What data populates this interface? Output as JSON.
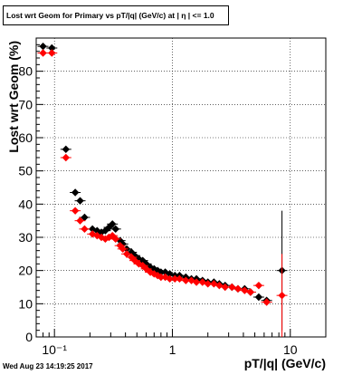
{
  "title": "Lost wrt Geom for Primary vs pT/|q| (GeV/c) at |  η | <= 1.0",
  "timestamp": "Wed Aug 23 14:19:25 2017",
  "chart_data": {
    "type": "scatter",
    "title": "Lost wrt Geom for Primary vs pT/|q| (GeV/c) at |  η | <= 1.0",
    "xlabel": "pT/|q| (GeV/c)",
    "ylabel": "Lost wrt Geom (%)",
    "xscale": "log",
    "xlim": [
      0.07,
      20
    ],
    "ylim": [
      0,
      90
    ],
    "grid": true,
    "x_ticks": [
      {
        "value": 0.1,
        "label": "10⁻¹"
      },
      {
        "value": 1,
        "label": "1"
      },
      {
        "value": 10,
        "label": "10"
      }
    ],
    "y_ticks": [
      0,
      10,
      20,
      30,
      40,
      50,
      60,
      70,
      80
    ],
    "colors": {
      "series1": "#000000",
      "series2": "#ff0000",
      "grid": "#000000"
    },
    "series": [
      {
        "color": "#000000",
        "marker": "diamond",
        "points": [
          {
            "x": 0.08,
            "y": 87.5
          },
          {
            "x": 0.095,
            "y": 87
          },
          {
            "x": 0.125,
            "y": 56.5
          },
          {
            "x": 0.15,
            "y": 43.5
          },
          {
            "x": 0.165,
            "y": 41
          },
          {
            "x": 0.18,
            "y": 36
          },
          {
            "x": 0.21,
            "y": 32.5
          },
          {
            "x": 0.23,
            "y": 32
          },
          {
            "x": 0.25,
            "y": 31.5
          },
          {
            "x": 0.27,
            "y": 32
          },
          {
            "x": 0.29,
            "y": 33
          },
          {
            "x": 0.31,
            "y": 34
          },
          {
            "x": 0.33,
            "y": 32.5
          },
          {
            "x": 0.36,
            "y": 29
          },
          {
            "x": 0.38,
            "y": 28
          },
          {
            "x": 0.41,
            "y": 26.5
          },
          {
            "x": 0.45,
            "y": 25.5
          },
          {
            "x": 0.48,
            "y": 24.5
          },
          {
            "x": 0.52,
            "y": 23.5
          },
          {
            "x": 0.56,
            "y": 23
          },
          {
            "x": 0.6,
            "y": 22
          },
          {
            "x": 0.65,
            "y": 21
          },
          {
            "x": 0.7,
            "y": 20.5
          },
          {
            "x": 0.75,
            "y": 20
          },
          {
            "x": 0.8,
            "y": 19.5
          },
          {
            "x": 0.87,
            "y": 19.5
          },
          {
            "x": 0.95,
            "y": 19
          },
          {
            "x": 1.05,
            "y": 18.5
          },
          {
            "x": 1.15,
            "y": 18.5
          },
          {
            "x": 1.3,
            "y": 18
          },
          {
            "x": 1.45,
            "y": 17.5
          },
          {
            "x": 1.6,
            "y": 17.5
          },
          {
            "x": 1.8,
            "y": 17
          },
          {
            "x": 2.0,
            "y": 16.5
          },
          {
            "x": 2.25,
            "y": 16.5
          },
          {
            "x": 2.5,
            "y": 16
          },
          {
            "x": 2.8,
            "y": 15.5
          },
          {
            "x": 3.2,
            "y": 15
          },
          {
            "x": 3.6,
            "y": 14.5
          },
          {
            "x": 4.1,
            "y": 14.5
          },
          {
            "x": 4.6,
            "y": 13.5
          },
          {
            "x": 5.4,
            "y": 12
          },
          {
            "x": 6.3,
            "y": 11
          },
          {
            "x": 8.5,
            "y": 20,
            "err": 18
          }
        ]
      },
      {
        "color": "#ff0000",
        "marker": "diamond",
        "points": [
          {
            "x": 0.08,
            "y": 85.5
          },
          {
            "x": 0.095,
            "y": 85.5
          },
          {
            "x": 0.125,
            "y": 54
          },
          {
            "x": 0.15,
            "y": 38
          },
          {
            "x": 0.165,
            "y": 35
          },
          {
            "x": 0.18,
            "y": 32.5
          },
          {
            "x": 0.21,
            "y": 31
          },
          {
            "x": 0.23,
            "y": 30.5
          },
          {
            "x": 0.25,
            "y": 30
          },
          {
            "x": 0.27,
            "y": 29.5
          },
          {
            "x": 0.29,
            "y": 30
          },
          {
            "x": 0.31,
            "y": 30.5
          },
          {
            "x": 0.33,
            "y": 29.5
          },
          {
            "x": 0.36,
            "y": 27.5
          },
          {
            "x": 0.38,
            "y": 26.5
          },
          {
            "x": 0.41,
            "y": 25
          },
          {
            "x": 0.45,
            "y": 24
          },
          {
            "x": 0.48,
            "y": 23
          },
          {
            "x": 0.52,
            "y": 22
          },
          {
            "x": 0.56,
            "y": 21.5
          },
          {
            "x": 0.6,
            "y": 20.5
          },
          {
            "x": 0.65,
            "y": 19.5
          },
          {
            "x": 0.7,
            "y": 19
          },
          {
            "x": 0.75,
            "y": 18.5
          },
          {
            "x": 0.8,
            "y": 18
          },
          {
            "x": 0.87,
            "y": 18
          },
          {
            "x": 0.95,
            "y": 17.5
          },
          {
            "x": 1.05,
            "y": 17.5
          },
          {
            "x": 1.15,
            "y": 17.5
          },
          {
            "x": 1.3,
            "y": 17
          },
          {
            "x": 1.45,
            "y": 17
          },
          {
            "x": 1.6,
            "y": 16.5
          },
          {
            "x": 1.8,
            "y": 16.5
          },
          {
            "x": 2.0,
            "y": 16
          },
          {
            "x": 2.25,
            "y": 16
          },
          {
            "x": 2.5,
            "y": 15.5
          },
          {
            "x": 2.8,
            "y": 15
          },
          {
            "x": 3.2,
            "y": 15
          },
          {
            "x": 3.6,
            "y": 14.5
          },
          {
            "x": 4.1,
            "y": 14
          },
          {
            "x": 4.6,
            "y": 13.5
          },
          {
            "x": 5.4,
            "y": 15.5
          },
          {
            "x": 6.3,
            "y": 10.5
          },
          {
            "x": 8.5,
            "y": 12.5,
            "err": 12.5
          }
        ]
      }
    ]
  }
}
